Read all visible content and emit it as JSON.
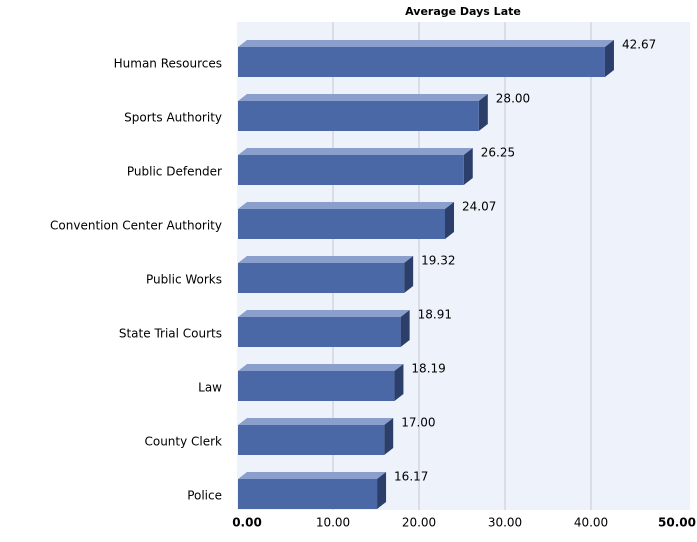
{
  "chart_data": {
    "type": "bar",
    "orientation": "horizontal",
    "title": "Average Days Late",
    "categories": [
      "Human Resources",
      "Sports Authority",
      "Public Defender",
      "Convention Center Authority",
      "Public Works",
      "State Trial Courts",
      "Law",
      "County Clerk",
      "Police"
    ],
    "values": [
      42.67,
      28,
      26.25,
      24.07,
      19.32,
      18.91,
      18.19,
      17,
      16.17
    ],
    "value_labels": [
      "42.67",
      "28.00",
      "26.25",
      "24.07",
      "19.32",
      "18.91",
      "18.19",
      "17.00",
      "16.17"
    ],
    "color": "#4a67a6",
    "xlim": [
      0,
      50
    ],
    "xticks": [
      {
        "value": 0,
        "label": "0.00"
      },
      {
        "value": 10,
        "label": "10.00"
      },
      {
        "value": 20,
        "label": "20.00"
      },
      {
        "value": 30,
        "label": "30.00"
      },
      {
        "value": 40,
        "label": "40.00"
      },
      {
        "value": 50,
        "label": "50.00"
      }
    ],
    "grid": true
  }
}
